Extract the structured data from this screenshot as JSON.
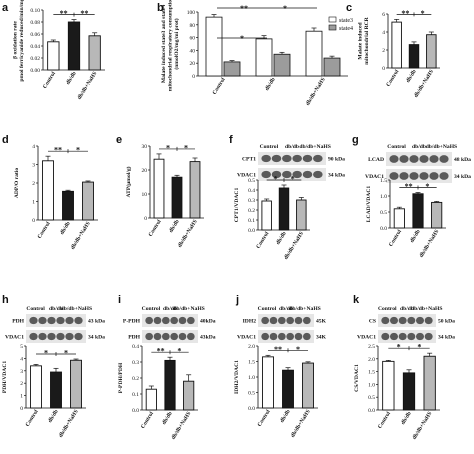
{
  "colors": {
    "control": "#ffffff",
    "dbdb": "#1a1a1a",
    "nahs": "#b8b8b8",
    "state3": "#ffffff",
    "state4": "#9c9c9c"
  },
  "chart_data": [
    {
      "id": "a",
      "panel_label": "a",
      "type": "bar",
      "ylabel": "β oxidation rate\npmol ferricyanide reduced/min/mg",
      "yticks": [
        "0.00",
        "0.02",
        "0.04",
        "0.06",
        "0.08",
        "0.10"
      ],
      "ylim": [
        0,
        0.1
      ],
      "categories": [
        "Control",
        "db/db",
        "db/db+NaHS"
      ],
      "values": [
        0.047,
        0.08,
        0.057
      ],
      "errors": [
        0.003,
        0.004,
        0.005
      ],
      "significance": [
        [
          "**",
          0,
          1
        ],
        [
          "**",
          1,
          2
        ]
      ]
    },
    {
      "id": "b",
      "panel_label": "b",
      "type": "bar",
      "grouped": true,
      "ylabel": "Malate induced state3 and state4\nmitochondrial respiratory consumption\n(nmolO2/mg/mi prot)",
      "yticks": [
        "0",
        "20",
        "40",
        "60",
        "80",
        "100"
      ],
      "ylim": [
        0,
        100
      ],
      "categories": [
        "Control",
        "db/db",
        "db/db+NaHS"
      ],
      "series": [
        {
          "name": "state3",
          "values": [
            92,
            58,
            70
          ],
          "errors": [
            4,
            5,
            5
          ]
        },
        {
          "name": "state4",
          "values": [
            22,
            34,
            28
          ],
          "errors": [
            2,
            3,
            3
          ]
        }
      ],
      "significance": [
        [
          "**",
          0,
          2
        ],
        [
          "*",
          2,
          4
        ],
        [
          "*",
          0,
          2
        ]
      ]
    },
    {
      "id": "c",
      "panel_label": "c",
      "type": "bar",
      "ylabel": "Malate induced\nmitochondrial RCR",
      "yticks": [
        "0",
        "2",
        "4",
        "6"
      ],
      "ylim": [
        0,
        6
      ],
      "categories": [
        "Control",
        "db/db",
        "db/db+NaHS"
      ],
      "values": [
        5.1,
        2.6,
        3.7
      ],
      "errors": [
        0.3,
        0.3,
        0.3
      ],
      "significance": [
        [
          "**",
          0,
          1
        ],
        [
          "*",
          1,
          2
        ]
      ]
    },
    {
      "id": "d",
      "panel_label": "d",
      "type": "bar",
      "ylabel": "ADP/O ratio",
      "yticks": [
        "0",
        "1",
        "2",
        "3",
        "4"
      ],
      "ylim": [
        0,
        4
      ],
      "categories": [
        "Control",
        "db/db",
        "db/db+NaHS"
      ],
      "values": [
        3.2,
        1.55,
        2.05
      ],
      "errors": [
        0.25,
        0.06,
        0.06
      ],
      "significance": [
        [
          "**",
          0,
          1
        ],
        [
          "*",
          1,
          2
        ]
      ]
    },
    {
      "id": "e",
      "panel_label": "e",
      "type": "bar",
      "ylabel": "ATP(μmol/g)",
      "yticks": [
        "0",
        "10",
        "20",
        "30"
      ],
      "ylim": [
        0,
        30
      ],
      "categories": [
        "Control",
        "db/db",
        "db/db+NaHS"
      ],
      "values": [
        24.5,
        17.0,
        23.5
      ],
      "errors": [
        2.2,
        0.8,
        1.5
      ],
      "significance": [
        [
          "*",
          0,
          1
        ],
        [
          "*",
          1,
          2
        ]
      ]
    },
    {
      "id": "f",
      "panel_label": "f",
      "type": "bar",
      "ylabel": "CPT1/VDAC1",
      "yticks": [
        "0.0",
        "0.1",
        "0.2",
        "0.3",
        "0.4",
        "0.5"
      ],
      "ylim": [
        0,
        0.5
      ],
      "categories": [
        "Control",
        "db/db",
        "db/db+NaHS"
      ],
      "values": [
        0.29,
        0.42,
        0.3
      ],
      "errors": [
        0.02,
        0.03,
        0.025
      ],
      "significance": [
        [
          "*",
          0,
          1
        ],
        [
          "*",
          1,
          2
        ]
      ],
      "blot": {
        "groups": [
          "Control",
          "db/db",
          "db/db+NaHS"
        ],
        "rows": [
          {
            "name": "CPT1",
            "size": "90 kDa"
          },
          {
            "name": "VDAC1",
            "size": "34 kDa"
          }
        ]
      }
    },
    {
      "id": "g",
      "panel_label": "g",
      "type": "bar",
      "ylabel": "LCAD/VDAC1",
      "yticks": [
        "0.0",
        "0.5",
        "1.0",
        "1.5"
      ],
      "ylim": [
        0,
        1.5
      ],
      "categories": [
        "Control",
        "db/db",
        "db/db+NaHS"
      ],
      "values": [
        0.6,
        1.07,
        0.8
      ],
      "errors": [
        0.05,
        0.04,
        0.03
      ],
      "significance": [
        [
          "**",
          0,
          1
        ],
        [
          "*",
          1,
          2
        ]
      ],
      "blot": {
        "groups": [
          "Control",
          "db/db",
          "db/db+NaHS"
        ],
        "rows": [
          {
            "name": "LCAD",
            "size": "48 kDa"
          },
          {
            "name": "VDAC1",
            "size": "34 kDa"
          }
        ]
      }
    },
    {
      "id": "h",
      "panel_label": "h",
      "type": "bar",
      "ylabel": "PDH/VDAC1",
      "yticks": [
        "0",
        "1",
        "2",
        "3",
        "4",
        "5"
      ],
      "ylim": [
        0,
        5
      ],
      "categories": [
        "Control",
        "db/db",
        "db/db+NaHS"
      ],
      "values": [
        3.4,
        2.9,
        3.85
      ],
      "errors": [
        0.12,
        0.3,
        0.1
      ],
      "significance": [
        [
          "*",
          0,
          1
        ],
        [
          "*",
          1,
          2
        ]
      ],
      "blot": {
        "groups": [
          "Control",
          "db/db",
          "db/db+NaHS"
        ],
        "rows": [
          {
            "name": "PDH",
            "size": "43 kDa"
          },
          {
            "name": "VDAC1",
            "size": "34 kDa"
          }
        ]
      }
    },
    {
      "id": "i",
      "panel_label": "i",
      "type": "bar",
      "ylabel": "P-PDH/PDH",
      "yticks": [
        "0.0",
        "0.1",
        "0.2",
        "0.3",
        "0.4"
      ],
      "ylim": [
        0,
        0.4
      ],
      "categories": [
        "Control",
        "db/db",
        "db/db+NaHS"
      ],
      "values": [
        0.13,
        0.31,
        0.18
      ],
      "errors": [
        0.02,
        0.02,
        0.04
      ],
      "significance": [
        [
          "**",
          0,
          1
        ],
        [
          "*",
          1,
          2
        ]
      ],
      "blot": {
        "groups": [
          "Control",
          "db/db",
          "db/db+NaHS"
        ],
        "rows": [
          {
            "name": "P-PDH",
            "size": "40kDa"
          },
          {
            "name": "PDH",
            "size": "43kDa"
          }
        ]
      }
    },
    {
      "id": "j",
      "panel_label": "j",
      "type": "bar",
      "ylabel": "IDH2/VDAC1",
      "yticks": [
        "0.0",
        "0.5",
        "1.0",
        "1.5",
        "2.0"
      ],
      "ylim": [
        0,
        2.0
      ],
      "categories": [
        "Control",
        "db/db",
        "db/db+NaHS"
      ],
      "values": [
        1.65,
        1.22,
        1.45
      ],
      "errors": [
        0.05,
        0.08,
        0.04
      ],
      "significance": [
        [
          "**",
          0,
          1
        ],
        [
          "*",
          1,
          2
        ]
      ],
      "blot": {
        "groups": [
          "Control",
          "db/db",
          "db/db+NaHS"
        ],
        "rows": [
          {
            "name": "IDH2",
            "size": "45K"
          },
          {
            "name": "VDAC1",
            "size": "34K"
          }
        ]
      }
    },
    {
      "id": "k",
      "panel_label": "k",
      "type": "bar",
      "ylabel": "CS/VDAC1",
      "yticks": [
        "0.0",
        "0.5",
        "1.0",
        "1.5",
        "2.0",
        "2.5"
      ],
      "ylim": [
        0,
        2.5
      ],
      "categories": [
        "Control",
        "db/db",
        "db/db+NaHS"
      ],
      "values": [
        1.9,
        1.45,
        2.1
      ],
      "errors": [
        0.04,
        0.12,
        0.12
      ],
      "significance": [
        [
          "*",
          0,
          1
        ],
        [
          "*",
          1,
          2
        ]
      ],
      "blot": {
        "groups": [
          "Control",
          "db/db",
          "db/db+NaHS"
        ],
        "rows": [
          {
            "name": "CS",
            "size": "50 kDa"
          },
          {
            "name": "VDAC1",
            "size": "34 kDa"
          }
        ]
      }
    }
  ]
}
